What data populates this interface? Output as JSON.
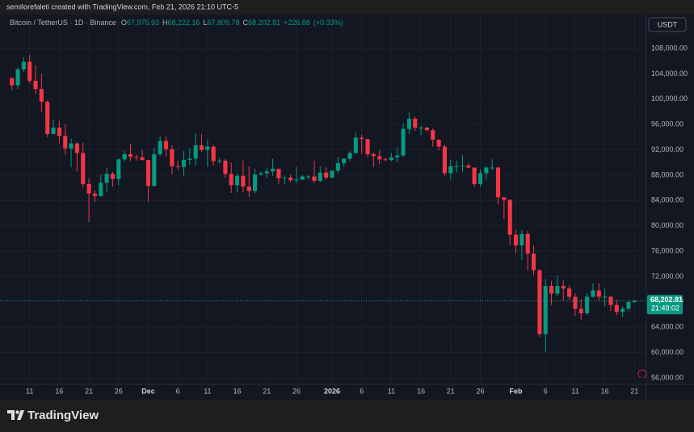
{
  "header": {
    "credit": "semilorefaleti created with TradingView.com, Feb 21, 2026 21:10 UTC-5"
  },
  "legend": {
    "symbol": "Bitcoin / TetherUS · 1D · Binance",
    "ohlc": [
      {
        "key": "O",
        "value": 67975.93,
        "label": "67,975.93"
      },
      {
        "key": "H",
        "value": 68222.16,
        "label": "68,222.16"
      },
      {
        "key": "L",
        "value": 67809.78,
        "label": "67,809.78"
      },
      {
        "key": "C",
        "value": 68202.81,
        "label": "68,202.81"
      }
    ],
    "change": {
      "value": 226.88,
      "label": "+226.88"
    },
    "change_pct": {
      "value": 0.33,
      "label": "(+0.33%)"
    }
  },
  "currency": "USDT",
  "last_price": {
    "value": 68202.81,
    "label": "68,202.81"
  },
  "countdown": "21:49:02",
  "footer": {
    "brand": "TradingView"
  },
  "chart_data": {
    "type": "candlestick",
    "up_color": "#089981",
    "down_color": "#f23645",
    "grid": true,
    "xlim": [
      "2025-11-06",
      "2026-02-23"
    ],
    "ylim": [
      55100,
      113100
    ],
    "yticks": [
      {
        "value": 56000,
        "label": "56,000.00"
      },
      {
        "value": 60000,
        "label": "60,000.00"
      },
      {
        "value": 64000,
        "label": "64,000.00"
      },
      {
        "value": 68000,
        "label": "68,000.00"
      },
      {
        "value": 72000,
        "label": "72,000.00"
      },
      {
        "value": 76000,
        "label": "76,000.00"
      },
      {
        "value": 80000,
        "label": "80,000.00"
      },
      {
        "value": 84000,
        "label": "84,000.00"
      },
      {
        "value": 88000,
        "label": "88,000.00"
      },
      {
        "value": 92000,
        "label": "92,000.00"
      },
      {
        "value": 96000,
        "label": "96,000.00"
      },
      {
        "value": 100000,
        "label": "100,000.00"
      },
      {
        "value": 104000,
        "label": "104,000.00"
      },
      {
        "value": 108000,
        "label": "108,000.00"
      }
    ],
    "xticks": [
      {
        "value": "2025-11-11",
        "label": "11"
      },
      {
        "value": "2025-11-16",
        "label": "16"
      },
      {
        "value": "2025-11-21",
        "label": "21"
      },
      {
        "value": "2025-11-26",
        "label": "26"
      },
      {
        "value": "2025-12-01",
        "label": "Dec"
      },
      {
        "value": "2025-12-06",
        "label": "6"
      },
      {
        "value": "2025-12-11",
        "label": "11"
      },
      {
        "value": "2025-12-16",
        "label": "16"
      },
      {
        "value": "2025-12-21",
        "label": "21"
      },
      {
        "value": "2025-12-26",
        "label": "26"
      },
      {
        "value": "2026-01-01",
        "label": "2026"
      },
      {
        "value": "2026-01-06",
        "label": "6"
      },
      {
        "value": "2026-01-11",
        "label": "11"
      },
      {
        "value": "2026-01-16",
        "label": "16"
      },
      {
        "value": "2026-01-21",
        "label": "21"
      },
      {
        "value": "2026-01-26",
        "label": "26"
      },
      {
        "value": "2026-02-01",
        "label": "Feb"
      },
      {
        "value": "2026-02-06",
        "label": "6"
      },
      {
        "value": "2026-02-11",
        "label": "11"
      },
      {
        "value": "2026-02-16",
        "label": "16"
      },
      {
        "value": "2026-02-21",
        "label": "21"
      }
    ],
    "x": [
      "2025-11-08",
      "2025-11-09",
      "2025-11-10",
      "2025-11-11",
      "2025-11-12",
      "2025-11-13",
      "2025-11-14",
      "2025-11-15",
      "2025-11-16",
      "2025-11-17",
      "2025-11-18",
      "2025-11-19",
      "2025-11-20",
      "2025-11-21",
      "2025-11-22",
      "2025-11-23",
      "2025-11-24",
      "2025-11-25",
      "2025-11-26",
      "2025-11-27",
      "2025-11-28",
      "2025-11-29",
      "2025-11-30",
      "2025-12-01",
      "2025-12-02",
      "2025-12-03",
      "2025-12-04",
      "2025-12-05",
      "2025-12-06",
      "2025-12-07",
      "2025-12-08",
      "2025-12-09",
      "2025-12-10",
      "2025-12-11",
      "2025-12-12",
      "2025-12-13",
      "2025-12-14",
      "2025-12-15",
      "2025-12-16",
      "2025-12-17",
      "2025-12-18",
      "2025-12-19",
      "2025-12-20",
      "2025-12-21",
      "2025-12-22",
      "2025-12-23",
      "2025-12-24",
      "2025-12-25",
      "2025-12-26",
      "2025-12-27",
      "2025-12-28",
      "2025-12-29",
      "2025-12-30",
      "2025-12-31",
      "2026-01-01",
      "2026-01-02",
      "2026-01-03",
      "2026-01-04",
      "2026-01-05",
      "2026-01-06",
      "2026-01-07",
      "2026-01-08",
      "2026-01-09",
      "2026-01-10",
      "2026-01-11",
      "2026-01-12",
      "2026-01-13",
      "2026-01-14",
      "2026-01-15",
      "2026-01-16",
      "2026-01-17",
      "2026-01-18",
      "2026-01-19",
      "2026-01-20",
      "2026-01-21",
      "2026-01-22",
      "2026-01-23",
      "2026-01-24",
      "2026-01-25",
      "2026-01-26",
      "2026-01-27",
      "2026-01-28",
      "2026-01-29",
      "2026-01-30",
      "2026-01-31",
      "2026-02-01",
      "2026-02-02",
      "2026-02-03",
      "2026-02-04",
      "2026-02-05",
      "2026-02-06",
      "2026-02-07",
      "2026-02-08",
      "2026-02-09",
      "2026-02-10",
      "2026-02-11",
      "2026-02-12",
      "2026-02-13",
      "2026-02-14",
      "2026-02-15",
      "2026-02-16",
      "2026-02-17",
      "2026-02-18",
      "2026-02-19",
      "2026-02-20",
      "2026-02-21"
    ],
    "open": [
      103300,
      102200,
      104700,
      105900,
      102900,
      101600,
      99600,
      94500,
      95500,
      94200,
      92200,
      93000,
      91500,
      86600,
      85100,
      84700,
      86800,
      88200,
      87400,
      90500,
      91300,
      90900,
      90800,
      90400,
      86300,
      91300,
      93400,
      92100,
      89400,
      89300,
      90400,
      90600,
      92700,
      92000,
      92500,
      90200,
      90300,
      88200,
      86400,
      87900,
      86200,
      85500,
      88100,
      88300,
      88600,
      89000,
      87500,
      87600,
      87200,
      87300,
      87800,
      87800,
      87100,
      88400,
      87600,
      88700,
      89900,
      90600,
      91500,
      93900,
      93700,
      91300,
      91000,
      90500,
      90400,
      90800,
      91100,
      95300,
      96900,
      95500,
      95500,
      95100,
      93600,
      92500,
      88300,
      89400,
      89400,
      89500,
      89200,
      86600,
      88300,
      89200,
      89200,
      84500,
      84100,
      78600,
      76900,
      78700,
      75600,
      73000,
      62900,
      70500,
      69300,
      70500,
      70100,
      68800,
      66900,
      66200,
      68800,
      69800,
      68800,
      68800,
      67500,
      66400,
      66900,
      67975.93
    ],
    "high": [
      103500,
      105000,
      106600,
      107000,
      105300,
      104000,
      99800,
      96800,
      96600,
      96000,
      93800,
      93200,
      93100,
      87500,
      85600,
      88100,
      89200,
      88500,
      90600,
      91900,
      93000,
      91200,
      92000,
      90400,
      92300,
      94100,
      94100,
      92700,
      90300,
      91800,
      92300,
      94600,
      94500,
      93600,
      92800,
      90700,
      90600,
      90000,
      88200,
      90300,
      89400,
      89000,
      88600,
      89100,
      90600,
      89000,
      87900,
      88100,
      89300,
      88000,
      88000,
      90300,
      89400,
      89200,
      88800,
      90900,
      90700,
      91800,
      94700,
      94400,
      93700,
      91600,
      91900,
      90800,
      91500,
      92400,
      96200,
      97900,
      97200,
      95800,
      95600,
      95400,
      93600,
      92800,
      90400,
      90300,
      91200,
      89800,
      89200,
      88900,
      89400,
      90500,
      89300,
      84600,
      84200,
      79400,
      79300,
      79200,
      76900,
      73100,
      71600,
      71300,
      72200,
      71400,
      70600,
      69300,
      68400,
      69400,
      70900,
      70900,
      70100,
      69000,
      68300,
      67300,
      68300,
      68222.16
    ],
    "low": [
      101400,
      101600,
      104300,
      102500,
      100800,
      98000,
      94000,
      94400,
      93000,
      91200,
      89300,
      88600,
      86100,
      80600,
      83800,
      84600,
      85300,
      86200,
      86400,
      90100,
      90200,
      90300,
      90300,
      83800,
      86200,
      91000,
      90900,
      88100,
      88900,
      87800,
      89600,
      89500,
      91600,
      89300,
      89500,
      89800,
      87600,
      85200,
      85300,
      85300,
      84500,
      85100,
      87900,
      87600,
      87900,
      86600,
      86600,
      86900,
      86700,
      87200,
      87300,
      86700,
      86900,
      87300,
      87500,
      88300,
      89300,
      90200,
      91400,
      91300,
      90800,
      89300,
      89700,
      90200,
      90200,
      90000,
      90900,
      94500,
      95000,
      94300,
      94900,
      92500,
      91900,
      87900,
      87300,
      88400,
      88500,
      89100,
      86100,
      86100,
      87300,
      88800,
      83400,
      81100,
      77000,
      75700,
      74600,
      72900,
      72200,
      62400,
      60100,
      67500,
      68900,
      68200,
      68300,
      65800,
      65200,
      65900,
      68700,
      68100,
      67300,
      66600,
      65900,
      65600,
      66500,
      67809.78
    ],
    "close": [
      102200,
      104700,
      105900,
      102900,
      101600,
      99600,
      94500,
      95500,
      94200,
      92200,
      93000,
      91500,
      86600,
      85100,
      84700,
      86800,
      88200,
      87400,
      90500,
      91300,
      90900,
      90800,
      90400,
      86300,
      91300,
      93400,
      92100,
      89400,
      89300,
      90400,
      90600,
      92700,
      92000,
      92500,
      90200,
      90300,
      88200,
      86400,
      87900,
      86200,
      85500,
      88100,
      88300,
      88600,
      89000,
      87500,
      87600,
      87200,
      87300,
      87800,
      87800,
      87100,
      88400,
      87600,
      88700,
      89900,
      90600,
      91500,
      93900,
      93700,
      91300,
      91000,
      90500,
      90400,
      90800,
      91100,
      95300,
      96900,
      95500,
      95500,
      95100,
      93600,
      92500,
      88300,
      89400,
      89400,
      89500,
      89200,
      86600,
      88300,
      89200,
      89200,
      84500,
      84100,
      78600,
      76900,
      78700,
      75600,
      73000,
      62900,
      70500,
      69300,
      70500,
      70100,
      68800,
      66900,
      66200,
      68800,
      69800,
      68800,
      68800,
      67500,
      66400,
      66900,
      67980,
      68202.81
    ]
  }
}
